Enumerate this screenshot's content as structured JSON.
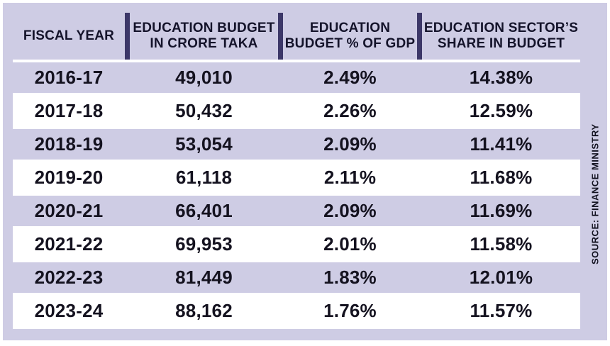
{
  "chart_data": {
    "type": "table",
    "columns": [
      "FISCAL YEAR",
      "EDUCATION BUDGET IN CRORE TAKA",
      "EDUCATION BUDGET % OF GDP",
      "EDUCATION SECTOR'S SHARE IN BUDGET"
    ],
    "rows": [
      [
        "2016-17",
        49010,
        2.49,
        14.38
      ],
      [
        "2017-18",
        50432,
        2.26,
        12.59
      ],
      [
        "2018-19",
        53054,
        2.09,
        11.41
      ],
      [
        "2019-20",
        61118,
        2.11,
        11.68
      ],
      [
        "2020-21",
        66401,
        2.09,
        11.69
      ],
      [
        "2021-22",
        69953,
        2.01,
        11.58
      ],
      [
        "2022-23",
        81449,
        1.83,
        12.01
      ],
      [
        "2023-24",
        88162,
        1.76,
        11.57
      ]
    ],
    "source": "SOURCE: FINANCE MINISTRY"
  },
  "header": {
    "fiscal_year": {
      "line1": "FISCAL YEAR"
    },
    "budget": {
      "line1": "EDUCATION BUDGET",
      "line2": "IN CRORE TAKA"
    },
    "gdp": {
      "line1": "EDUCATION",
      "line2": "BUDGET % OF GDP"
    },
    "share": {
      "line1": "EDUCATION SECTOR’S",
      "line2": "SHARE IN BUDGET"
    }
  },
  "rows": [
    {
      "year": "2016-17",
      "budget": "49,010",
      "gdp": "2.49%",
      "share": "14.38%"
    },
    {
      "year": "2017-18",
      "budget": "50,432",
      "gdp": "2.26%",
      "share": "12.59%"
    },
    {
      "year": "2018-19",
      "budget": "53,054",
      "gdp": "2.09%",
      "share": "11.41%"
    },
    {
      "year": "2019-20",
      "budget": "61,118",
      "gdp": "2.11%",
      "share": "11.68%"
    },
    {
      "year": "2020-21",
      "budget": "66,401",
      "gdp": "2.09%",
      "share": "11.69%"
    },
    {
      "year": "2021-22",
      "budget": "69,953",
      "gdp": "2.01%",
      "share": "11.58%"
    },
    {
      "year": "2022-23",
      "budget": "81,449",
      "gdp": "1.83%",
      "share": "12.01%"
    },
    {
      "year": "2023-24",
      "budget": "88,162",
      "gdp": "1.76%",
      "share": "11.57%"
    }
  ],
  "source": "SOURCE: FINANCE MINISTRY",
  "colors": {
    "lavender": "#cecce4",
    "divider": "#3c3768",
    "text": "#14132a",
    "white_row": "#ffffff"
  }
}
